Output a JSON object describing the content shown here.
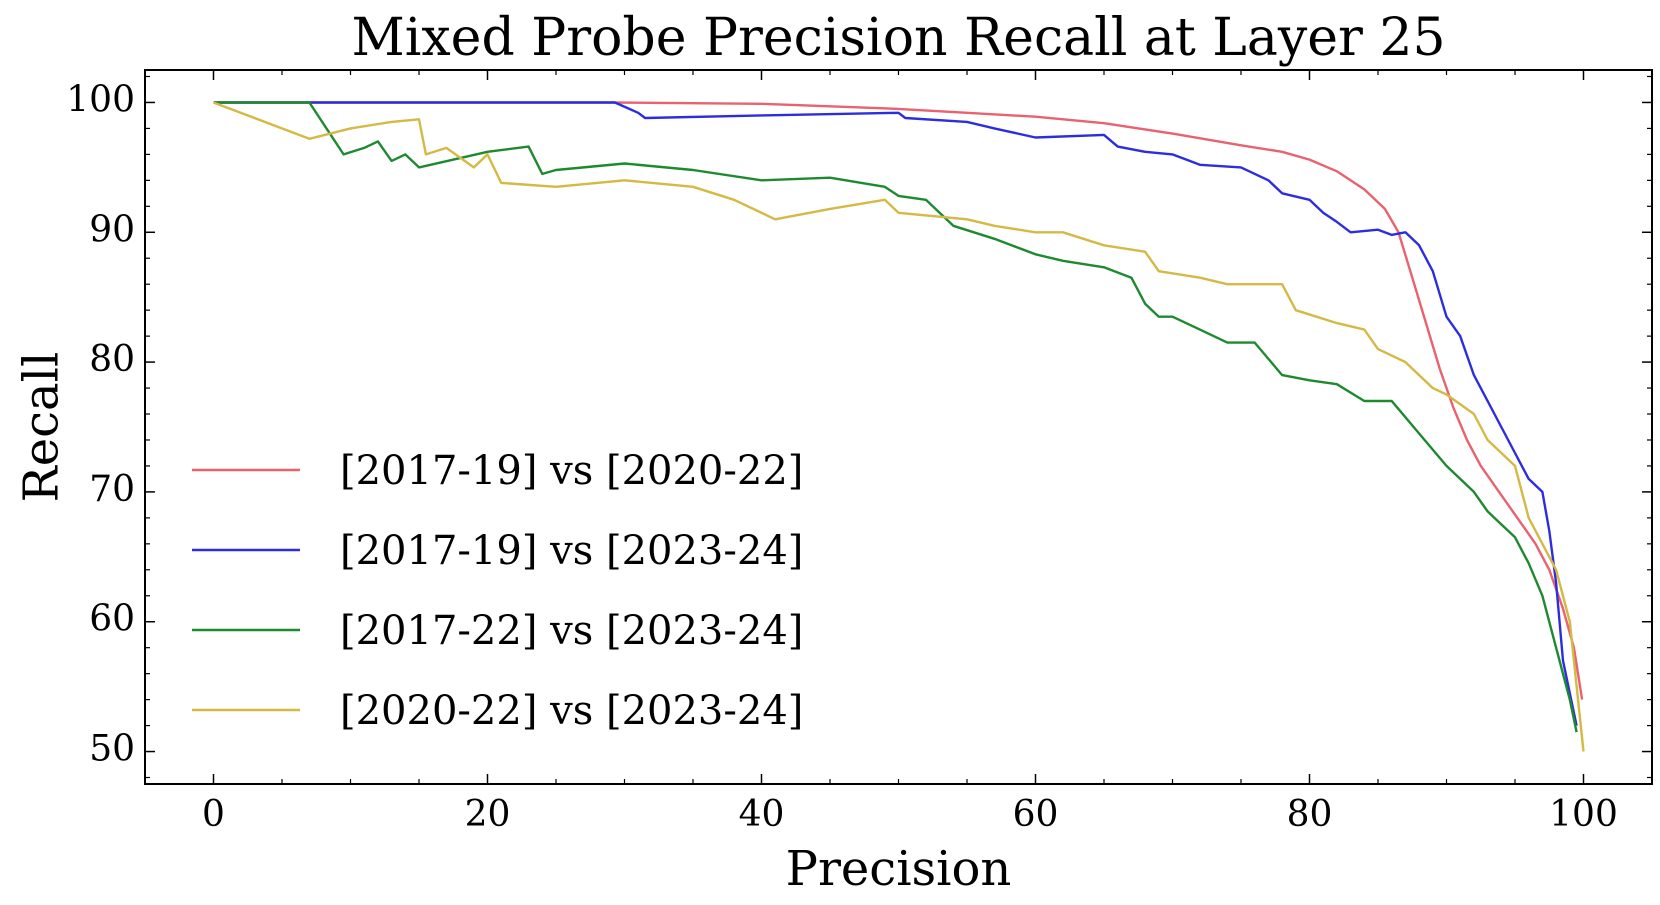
{
  "chart_data": {
    "type": "line",
    "title": "Mixed Probe Precision Recall at Layer 25",
    "xlabel": "Precision",
    "ylabel": "Recall",
    "xlim": [
      -5,
      105
    ],
    "ylim": [
      47.5,
      102.5
    ],
    "xticks": [
      0,
      20,
      40,
      60,
      80,
      100
    ],
    "yticks": [
      50,
      60,
      70,
      80,
      90,
      100
    ],
    "grid": false,
    "legend_position": "lower-left",
    "series": [
      {
        "name": "[2017-19] vs [2020-22]",
        "color": "#e8626f",
        "points": [
          [
            0,
            100
          ],
          [
            29,
            100
          ],
          [
            40,
            99.9
          ],
          [
            45,
            99.7
          ],
          [
            50,
            99.5
          ],
          [
            55,
            99.2
          ],
          [
            60,
            98.9
          ],
          [
            65,
            98.4
          ],
          [
            70,
            97.6
          ],
          [
            75,
            96.7
          ],
          [
            78,
            96.2
          ],
          [
            80,
            95.6
          ],
          [
            82,
            94.7
          ],
          [
            84,
            93.3
          ],
          [
            85.5,
            91.8
          ],
          [
            86.5,
            90
          ],
          [
            87.5,
            86.5
          ],
          [
            88.5,
            83
          ],
          [
            89.5,
            79.5
          ],
          [
            90.5,
            76.5
          ],
          [
            91.5,
            74
          ],
          [
            92.5,
            72
          ],
          [
            93.5,
            70.5
          ],
          [
            94.5,
            69
          ],
          [
            95.5,
            67.5
          ],
          [
            96.5,
            66
          ],
          [
            97.5,
            64
          ],
          [
            98.5,
            61
          ],
          [
            99.3,
            58
          ],
          [
            99.9,
            54
          ]
        ]
      },
      {
        "name": "[2017-19] vs [2023-24]",
        "color": "#2d2de0",
        "points": [
          [
            0,
            100
          ],
          [
            29.3,
            100
          ],
          [
            31,
            99.2
          ],
          [
            31.5,
            98.8
          ],
          [
            40,
            99
          ],
          [
            50,
            99.2
          ],
          [
            50.5,
            98.8
          ],
          [
            55,
            98.5
          ],
          [
            57,
            98
          ],
          [
            60,
            97.3
          ],
          [
            65,
            97.5
          ],
          [
            66,
            96.6
          ],
          [
            68,
            96.2
          ],
          [
            70,
            96
          ],
          [
            72,
            95.2
          ],
          [
            75,
            95
          ],
          [
            77,
            94
          ],
          [
            78,
            93
          ],
          [
            80,
            92.5
          ],
          [
            81,
            91.5
          ],
          [
            82,
            90.8
          ],
          [
            83,
            90
          ],
          [
            85,
            90.2
          ],
          [
            86,
            89.8
          ],
          [
            87,
            90
          ],
          [
            88,
            89
          ],
          [
            89,
            87
          ],
          [
            90,
            83.5
          ],
          [
            91,
            82
          ],
          [
            92,
            79
          ],
          [
            93,
            77
          ],
          [
            94,
            75
          ],
          [
            95,
            73
          ],
          [
            96,
            71
          ],
          [
            97,
            70
          ],
          [
            97.5,
            67
          ],
          [
            98,
            63
          ],
          [
            98.5,
            57
          ],
          [
            99.5,
            52
          ]
        ]
      },
      {
        "name": "[2017-22] vs [2023-24]",
        "color": "#1e8a30",
        "points": [
          [
            0,
            100
          ],
          [
            7,
            100
          ],
          [
            9.5,
            96
          ],
          [
            11,
            96.5
          ],
          [
            12,
            97
          ],
          [
            13,
            95.5
          ],
          [
            14,
            96
          ],
          [
            15,
            95
          ],
          [
            20,
            96.2
          ],
          [
            23,
            96.6
          ],
          [
            24,
            94.5
          ],
          [
            25,
            94.8
          ],
          [
            30,
            95.3
          ],
          [
            35,
            94.8
          ],
          [
            40,
            94
          ],
          [
            45,
            94.2
          ],
          [
            49,
            93.5
          ],
          [
            50,
            92.8
          ],
          [
            52,
            92.5
          ],
          [
            54,
            90.5
          ],
          [
            57,
            89.5
          ],
          [
            60,
            88.3
          ],
          [
            62,
            87.8
          ],
          [
            65,
            87.3
          ],
          [
            67,
            86.5
          ],
          [
            68,
            84.5
          ],
          [
            69,
            83.5
          ],
          [
            70,
            83.5
          ],
          [
            72,
            82.5
          ],
          [
            74,
            81.5
          ],
          [
            76,
            81.5
          ],
          [
            78,
            79
          ],
          [
            80,
            78.6
          ],
          [
            82,
            78.3
          ],
          [
            84,
            77
          ],
          [
            86,
            77
          ],
          [
            88,
            74.5
          ],
          [
            90,
            72
          ],
          [
            91,
            71
          ],
          [
            92,
            70
          ],
          [
            93,
            68.5
          ],
          [
            94,
            67.5
          ],
          [
            95,
            66.5
          ],
          [
            96,
            64.5
          ],
          [
            97,
            62
          ],
          [
            98,
            58
          ],
          [
            99,
            54
          ],
          [
            99.5,
            51.5
          ]
        ]
      },
      {
        "name": "[2020-22] vs [2023-24]",
        "color": "#d4b944",
        "points": [
          [
            0,
            100
          ],
          [
            7,
            97.2
          ],
          [
            10,
            98
          ],
          [
            13,
            98.5
          ],
          [
            15,
            98.7
          ],
          [
            15.5,
            96
          ],
          [
            17,
            96.5
          ],
          [
            19,
            95
          ],
          [
            20,
            96
          ],
          [
            21,
            93.8
          ],
          [
            25,
            93.5
          ],
          [
            30,
            94
          ],
          [
            35,
            93.5
          ],
          [
            38,
            92.5
          ],
          [
            41,
            91
          ],
          [
            45,
            91.8
          ],
          [
            49,
            92.5
          ],
          [
            50,
            91.5
          ],
          [
            55,
            91
          ],
          [
            57,
            90.5
          ],
          [
            60,
            90
          ],
          [
            62,
            90
          ],
          [
            65,
            89
          ],
          [
            68,
            88.5
          ],
          [
            69,
            87
          ],
          [
            72,
            86.5
          ],
          [
            74,
            86
          ],
          [
            78,
            86
          ],
          [
            79,
            84
          ],
          [
            82,
            83
          ],
          [
            84,
            82.5
          ],
          [
            85,
            81
          ],
          [
            87,
            80
          ],
          [
            88,
            79
          ],
          [
            89,
            78
          ],
          [
            90,
            77.5
          ],
          [
            92,
            76
          ],
          [
            93,
            74
          ],
          [
            95,
            72
          ],
          [
            96,
            68
          ],
          [
            97,
            66
          ],
          [
            98,
            64
          ],
          [
            99,
            60
          ],
          [
            100,
            50
          ]
        ]
      }
    ]
  }
}
